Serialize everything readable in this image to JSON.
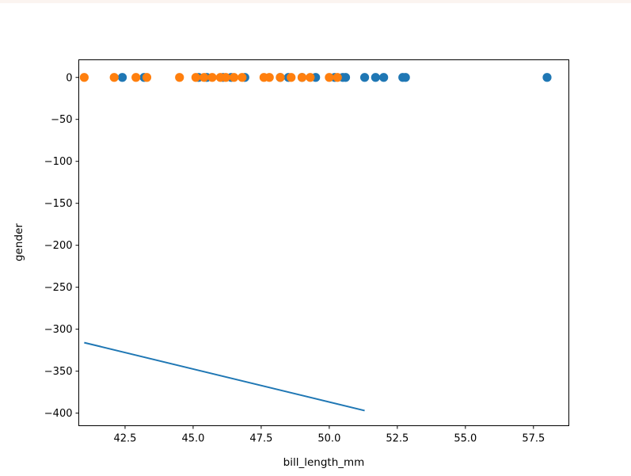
{
  "chart_data": {
    "type": "scatter",
    "xlabel": "bill_length_mm",
    "ylabel": "gender",
    "xlim": [
      40.8,
      58.8
    ],
    "ylim": [
      -415,
      21
    ],
    "x_ticks": [
      42.5,
      45.0,
      47.5,
      50.0,
      52.5,
      55.0,
      57.5
    ],
    "x_tick_labels": [
      "42.5",
      "45.0",
      "47.5",
      "50.0",
      "52.5",
      "55.0",
      "57.5"
    ],
    "y_ticks": [
      0,
      -50,
      -100,
      -150,
      -200,
      -250,
      -300,
      -350,
      -400
    ],
    "y_tick_labels": [
      "0",
      "−50",
      "−100",
      "−150",
      "−200",
      "−250",
      "−300",
      "−350",
      "−400"
    ],
    "grid": false,
    "legend": "none",
    "series": [
      {
        "kind": "scatter",
        "color": "#1f77b4",
        "x": [
          42.4,
          43.2,
          45.2,
          45.5,
          46.1,
          46.4,
          46.9,
          48.2,
          48.5,
          49.0,
          49.5,
          50.2,
          50.5,
          50.6,
          51.3,
          51.7,
          52.0,
          52.7,
          52.8,
          58.0
        ],
        "y": [
          0,
          0,
          0,
          0,
          0,
          0,
          0,
          0,
          0,
          0,
          0,
          0,
          0,
          0,
          0,
          0,
          0,
          0,
          0,
          0
        ]
      },
      {
        "kind": "scatter",
        "color": "#ff7f0e",
        "x": [
          41.0,
          42.1,
          42.9,
          43.3,
          44.5,
          45.1,
          45.4,
          45.7,
          46.0,
          46.2,
          46.5,
          46.8,
          47.6,
          47.8,
          48.2,
          48.6,
          49.0,
          49.3,
          50.0,
          50.3
        ],
        "y": [
          0,
          0,
          0,
          0,
          0,
          0,
          0,
          0,
          0,
          0,
          0,
          0,
          0,
          0,
          0,
          0,
          0,
          0,
          0,
          0
        ]
      },
      {
        "kind": "line",
        "color": "#1f77b4",
        "x": [
          41.0,
          51.3
        ],
        "y": [
          -316,
          -397
        ]
      }
    ]
  }
}
